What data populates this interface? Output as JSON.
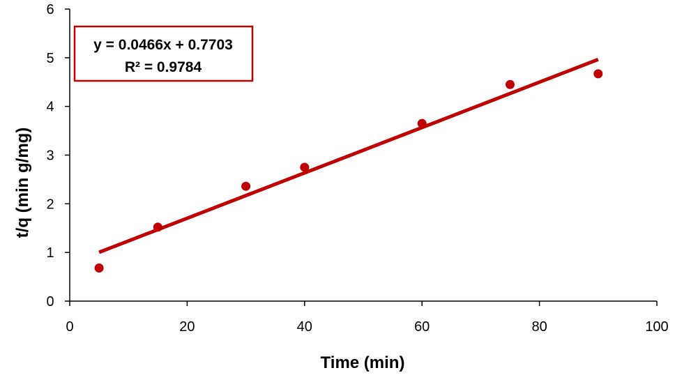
{
  "chart_data": {
    "type": "scatter",
    "xlabel": "Time (min)",
    "ylabel": "t/q  (min g/mg)",
    "xlim": [
      0,
      100
    ],
    "ylim": [
      0,
      6
    ],
    "xticks": [
      0,
      20,
      40,
      60,
      80,
      100
    ],
    "yticks": [
      0,
      1,
      2,
      3,
      4,
      5,
      6
    ],
    "grid": false,
    "series": [
      {
        "x": [
          5,
          15,
          30,
          40,
          60,
          75,
          90
        ],
        "y": [
          0.68,
          1.52,
          2.36,
          2.75,
          3.65,
          4.45,
          4.67
        ],
        "color": "#c00000"
      }
    ],
    "trendline": {
      "type": "linear",
      "slope": 0.0466,
      "intercept": 0.7703,
      "x_range": [
        5,
        90
      ],
      "color": "#c00000",
      "equation": "y = 0.0466x + 0.7703",
      "r_squared": "R² = 0.9784"
    },
    "annotation_box_color": "#c00000"
  }
}
